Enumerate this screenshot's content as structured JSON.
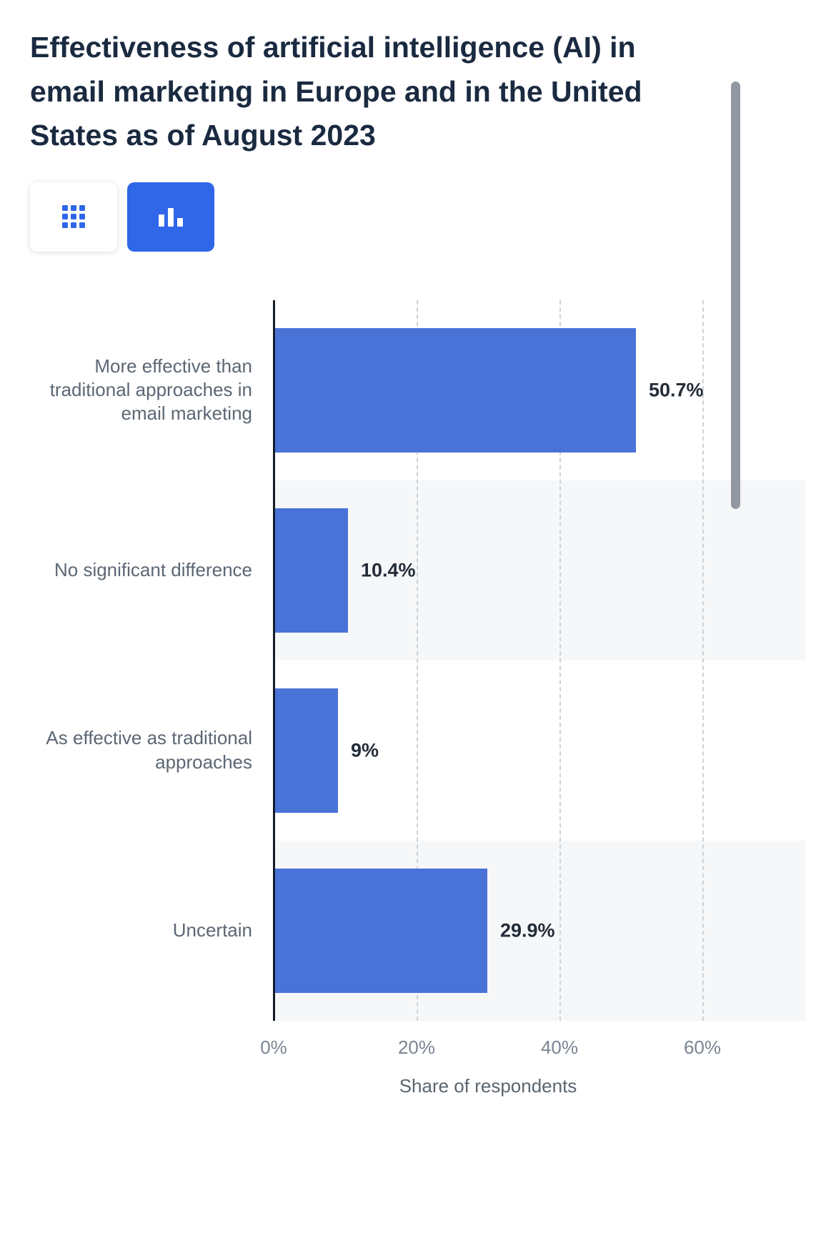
{
  "page": {
    "title": "Effectiveness of artificial intelligence (AI) in email marketing in Europe and in the United States as of August 2023"
  },
  "toolbar": {
    "views": [
      {
        "icon": "grid-icon",
        "name": "table-view",
        "active": false
      },
      {
        "icon": "bar-chart-icon",
        "name": "chart-view",
        "active": true
      }
    ]
  },
  "chart_data": {
    "type": "bar",
    "orientation": "horizontal",
    "title": "Effectiveness of artificial intelligence (AI) in email marketing in Europe and in the United States as of August 2023",
    "categories": [
      "More effective than traditional approaches in email marketing",
      "No significant difference",
      "As effective as traditional approaches",
      "Uncertain"
    ],
    "values": [
      50.7,
      10.4,
      9,
      29.9
    ],
    "value_labels": [
      "50.7%",
      "10.4%",
      "9%",
      "29.9%"
    ],
    "xlabel": "Share of respondents",
    "ylabel": "",
    "x_ticks": [
      "0%",
      "20%",
      "40%",
      "60%"
    ],
    "x_tick_values": [
      0,
      20,
      40,
      60
    ],
    "xlim": [
      0,
      60
    ],
    "grid": "dashed-vertical-gridlines",
    "legend": "none",
    "bar_color": "#4a73d8",
    "stripe_color": "#f6f7f8",
    "accent_color": "#3066e8"
  }
}
